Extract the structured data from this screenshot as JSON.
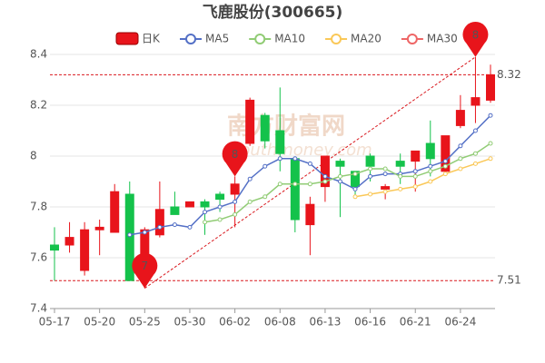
{
  "chart_data": {
    "type": "candlestick",
    "title": "飞鹿股份(300665)",
    "candle_name": "日K",
    "watermark": [
      "南方财富网",
      "southmoney.com"
    ],
    "categories": [
      "05-17",
      null,
      null,
      "05-20",
      null,
      null,
      "05-25",
      null,
      null,
      "05-30",
      null,
      null,
      "06-02",
      null,
      null,
      "06-08",
      null,
      null,
      "06-13",
      null,
      null,
      "06-16",
      null,
      null,
      "06-21",
      null,
      null,
      "06-24",
      null,
      null
    ],
    "open": [
      7.65,
      7.65,
      7.55,
      7.71,
      7.7,
      7.85,
      7.51,
      7.69,
      7.8,
      7.8,
      7.82,
      7.85,
      7.85,
      8.05,
      8.16,
      8.1,
      7.99,
      7.73,
      7.88,
      7.98,
      7.94,
      8.0,
      7.87,
      7.98,
      7.98,
      8.05,
      7.94,
      8.12,
      8.2,
      8.22
    ],
    "close": [
      7.63,
      7.68,
      7.71,
      7.72,
      7.86,
      7.51,
      7.71,
      7.79,
      7.77,
      7.82,
      7.8,
      7.83,
      7.89,
      8.22,
      8.06,
      8.01,
      7.75,
      7.81,
      8.0,
      7.96,
      7.88,
      7.96,
      7.88,
      7.96,
      8.02,
      7.99,
      8.08,
      8.18,
      8.23,
      8.32
    ],
    "high": [
      7.72,
      7.74,
      7.74,
      7.75,
      7.89,
      7.9,
      7.72,
      7.9,
      7.86,
      7.82,
      7.83,
      7.86,
      7.92,
      8.23,
      8.17,
      8.27,
      7.99,
      7.84,
      8.0,
      7.99,
      7.94,
      8.01,
      7.89,
      8.01,
      8.02,
      8.14,
      8.08,
      8.24,
      8.39,
      8.36
    ],
    "low": [
      7.51,
      7.62,
      7.53,
      7.61,
      7.7,
      7.51,
      7.48,
      7.68,
      7.77,
      7.8,
      7.69,
      7.78,
      7.72,
      8.04,
      8.03,
      7.94,
      7.7,
      7.61,
      7.82,
      7.76,
      7.84,
      7.9,
      7.83,
      7.89,
      7.86,
      7.92,
      7.93,
      8.11,
      8.13,
      8.21
    ],
    "up_color": "#e8141b",
    "down_color": "#14c24b",
    "series": [
      {
        "name": "MA5",
        "color": "#5470c6",
        "values": [
          null,
          null,
          null,
          null,
          null,
          7.69,
          7.7,
          7.72,
          7.73,
          7.72,
          7.78,
          7.8,
          7.82,
          7.91,
          7.96,
          7.99,
          7.99,
          7.97,
          7.92,
          7.9,
          7.87,
          7.92,
          7.93,
          7.93,
          7.94,
          7.96,
          7.98,
          8.04,
          8.1,
          8.16
        ]
      },
      {
        "name": "MA10",
        "color": "#91cc75",
        "values": [
          null,
          null,
          null,
          null,
          null,
          null,
          null,
          null,
          null,
          null,
          7.74,
          7.75,
          7.77,
          7.82,
          7.84,
          7.89,
          7.89,
          7.89,
          7.9,
          7.92,
          7.93,
          7.95,
          7.95,
          7.92,
          7.92,
          7.94,
          7.96,
          7.99,
          8.01,
          8.05
        ]
      },
      {
        "name": "MA20",
        "color": "#fac858",
        "values": [
          null,
          null,
          null,
          null,
          null,
          null,
          null,
          null,
          null,
          null,
          null,
          null,
          null,
          null,
          null,
          null,
          null,
          null,
          null,
          null,
          7.84,
          7.85,
          7.86,
          7.87,
          7.88,
          7.9,
          7.93,
          7.95,
          7.97,
          7.99
        ]
      },
      {
        "name": "MA30",
        "color": "#ee6666",
        "values": [
          null,
          null,
          null,
          null,
          null,
          null,
          null,
          null,
          null,
          null,
          null,
          null,
          null,
          null,
          null,
          null,
          null,
          null,
          null,
          null,
          null,
          null,
          null,
          null,
          null,
          null,
          null,
          null,
          null,
          null
        ]
      }
    ],
    "markers": [
      {
        "label": "8",
        "value": 7.92
      },
      {
        "label": "7",
        "value": 7.48
      },
      {
        "label": "8",
        "value": 8.39
      }
    ],
    "reference_lines": [
      8.32,
      7.51
    ],
    "reference_color": "#d9181e",
    "ylim": [
      7.4,
      8.4
    ],
    "yticks": [
      7.4,
      7.6,
      7.8,
      8,
      8.2,
      8.4
    ],
    "grid": true
  }
}
